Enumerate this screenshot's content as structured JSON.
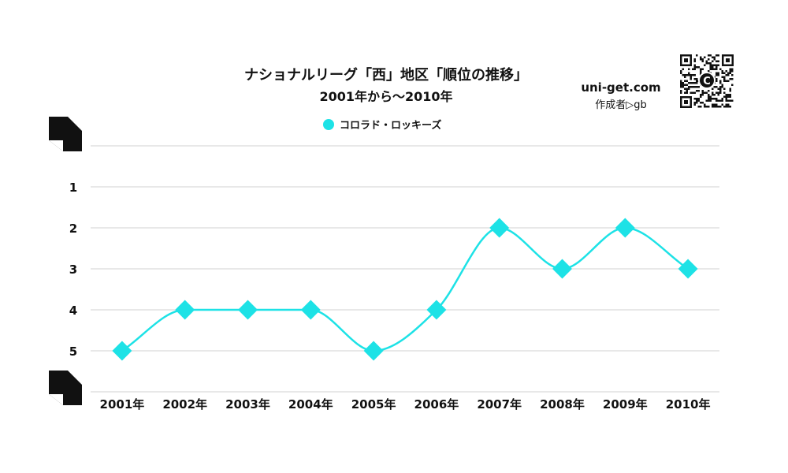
{
  "header": {
    "title": "ナショナルリーグ「西」地区「順位の推移」",
    "subtitle": "2001年から～2010年"
  },
  "brand": {
    "site": "uni-get.com",
    "author": "作成者▷gb",
    "qr_badge": "C",
    "qr_icon": "qr-code-icon"
  },
  "colors": {
    "series": "#1de2e6",
    "grid": "#d0d0d0",
    "text": "#111111"
  },
  "chart_data": {
    "type": "line",
    "title": "ナショナルリーグ「西」地区「順位の推移」",
    "subtitle": "2001年から～2010年",
    "xlabel": "",
    "ylabel": "",
    "categories": [
      "2001年",
      "2002年",
      "2003年",
      "2004年",
      "2005年",
      "2006年",
      "2007年",
      "2008年",
      "2009年",
      "2010年"
    ],
    "y_ticks": [
      "1",
      "2",
      "3",
      "4",
      "5"
    ],
    "ylim": [
      0,
      6
    ],
    "y_inverted": true,
    "grid": true,
    "legend_position": "top-center",
    "marker": "diamond",
    "smooth": true,
    "series": [
      {
        "name": "コロラド・ロッキーズ",
        "values": [
          5,
          4,
          4,
          4,
          5,
          4,
          2,
          3,
          2,
          3
        ]
      }
    ]
  }
}
